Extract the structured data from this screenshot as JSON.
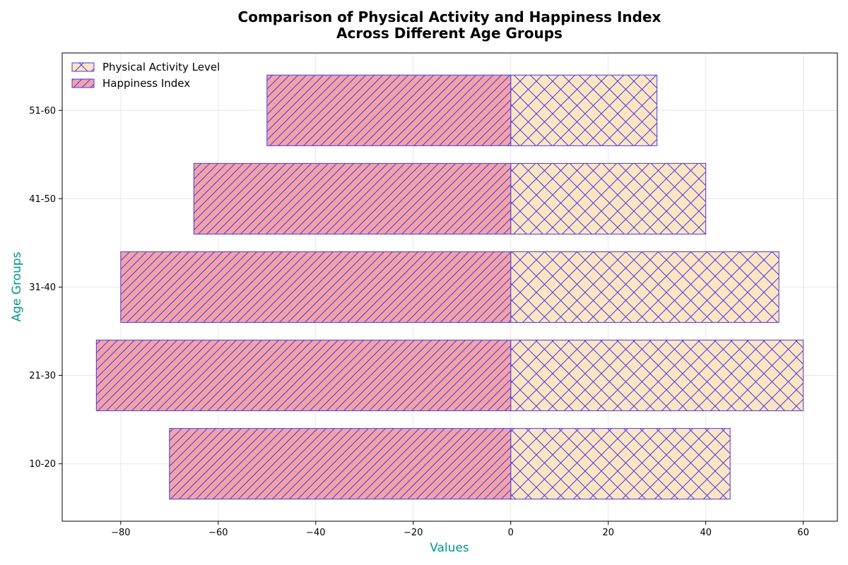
{
  "chart_data": {
    "type": "bar",
    "orientation": "horizontal",
    "title": [
      "Comparison of Physical Activity and Happiness Index",
      "Across Different Age Groups"
    ],
    "xlabel": "Values",
    "ylabel": "Age Groups",
    "categories": [
      "10-20",
      "21-30",
      "31-40",
      "41-50",
      "51-60"
    ],
    "series": [
      {
        "name": "Physical Activity Level",
        "values": [
          45,
          60,
          55,
          40,
          30
        ],
        "color": "#fde5c4",
        "hatch": "cross",
        "edgecolor": "#4a3adf"
      },
      {
        "name": "Happiness Index",
        "values": [
          -70,
          -85,
          -80,
          -65,
          -50
        ],
        "color": "#f3a3a8",
        "hatch": "diagonal",
        "edgecolor": "#4a3adf"
      }
    ],
    "xlim": [
      -92,
      67
    ],
    "xticks": [
      -80,
      -60,
      -40,
      -20,
      0,
      20,
      40,
      60
    ],
    "xtick_labels": [
      "−80",
      "−60",
      "−40",
      "−20",
      "0",
      "20",
      "40",
      "60"
    ],
    "grid": true,
    "legend_position": "top-left"
  }
}
